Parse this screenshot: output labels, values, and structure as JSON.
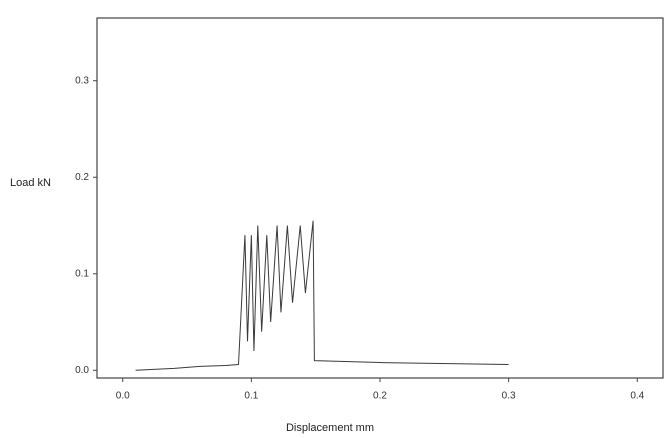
{
  "chart_data": {
    "type": "line",
    "xlabel": "Displacement mm",
    "ylabel": "Load kN",
    "x": [
      0.01,
      0.04,
      0.06,
      0.08,
      0.09,
      0.095,
      0.097,
      0.1,
      0.102,
      0.105,
      0.108,
      0.112,
      0.115,
      0.12,
      0.123,
      0.128,
      0.132,
      0.138,
      0.142,
      0.148,
      0.149,
      0.2,
      0.3
    ],
    "series": [
      {
        "color": "#3a3a3a",
        "values": [
          0.0,
          0.002,
          0.004,
          0.005,
          0.006,
          0.14,
          0.03,
          0.14,
          0.02,
          0.15,
          0.04,
          0.14,
          0.05,
          0.15,
          0.06,
          0.15,
          0.07,
          0.15,
          0.08,
          0.155,
          0.01,
          0.008,
          0.006
        ]
      }
    ],
    "xlim": [
      -0.02,
      0.42
    ],
    "xticks": [
      {
        "value": 0,
        "label": "0.0"
      },
      0.1,
      0.2,
      0.3,
      0.4
    ],
    "ylim": [
      -0.008,
      0.365
    ],
    "yticks": [
      {
        "value": 0,
        "label": "0.0"
      },
      0.1,
      0.2,
      0.3
    ]
  }
}
